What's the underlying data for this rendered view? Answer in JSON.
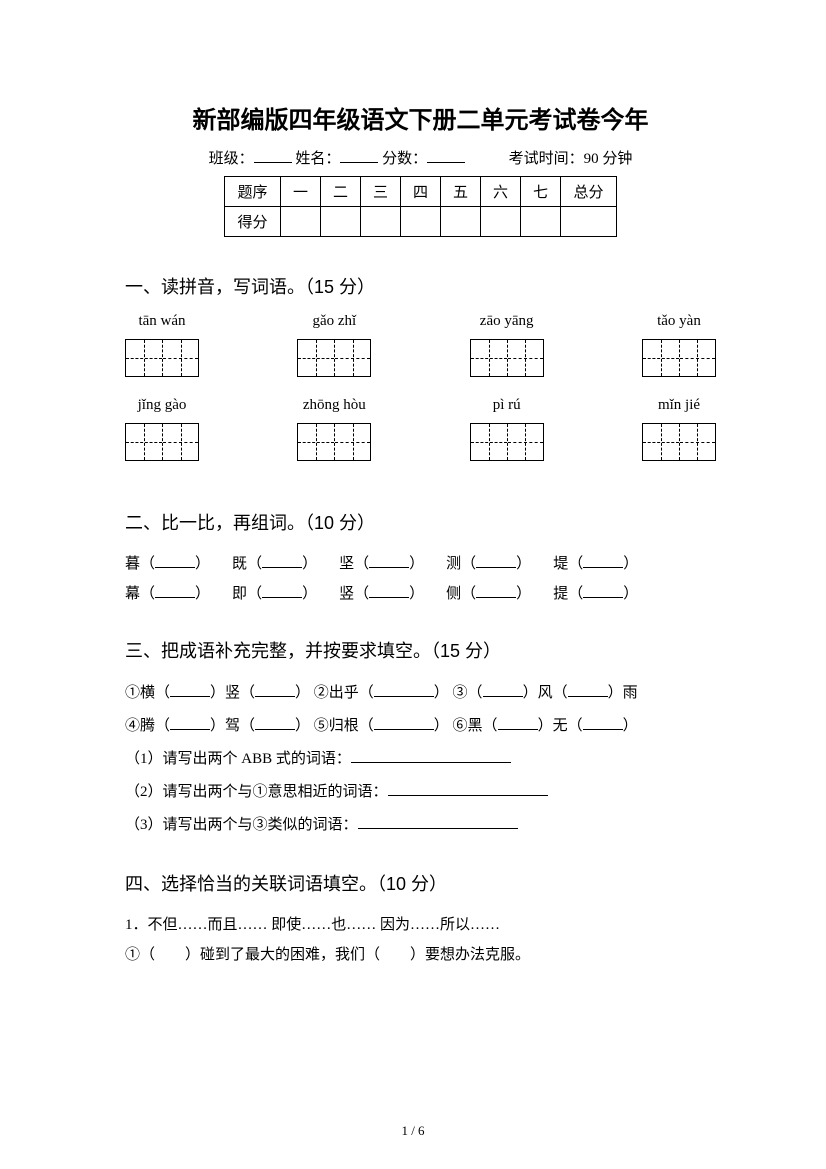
{
  "title": "新部编版四年级语文下册二单元考试卷今年",
  "meta": {
    "class_label": "班级：",
    "name_label": "姓名：",
    "score_label": "分数：",
    "time_label": "考试时间：90 分钟"
  },
  "score_table": {
    "row1": [
      "题序",
      "一",
      "二",
      "三",
      "四",
      "五",
      "六",
      "七",
      "总分"
    ],
    "row2_label": "得分"
  },
  "sections": {
    "s1": {
      "title": "一、读拼音，写词语。（15 分）",
      "row1": [
        "tān wán",
        "gǎo zhǐ",
        "zāo yāng",
        "tǎo yàn"
      ],
      "row2": [
        "jǐng gào",
        "zhōng hòu",
        "pì rú",
        "mǐn jié"
      ],
      "box_counts_row1": [
        2,
        2,
        2,
        2
      ],
      "box_counts_row2": [
        2,
        2,
        2,
        2
      ]
    },
    "s2": {
      "title": "二、比一比，再组词。（10 分）",
      "pairs_line1": [
        "暮",
        "既",
        "坚",
        "测",
        "堤"
      ],
      "pairs_line2": [
        "幕",
        "即",
        "竖",
        "侧",
        "提"
      ]
    },
    "s3": {
      "title": "三、把成语补充完整，并按要求填空。（15 分）",
      "l1_a": "①横（",
      "l1_b": "）竖（",
      "l1_c": "）  ②出乎（",
      "l1_d": "）  ③（",
      "l1_e": "）风（",
      "l1_f": "）雨",
      "l2_a": "④腾（",
      "l2_b": "）驾（",
      "l2_c": "）  ⑤归根（",
      "l2_d": "）  ⑥黑（",
      "l2_e": "）无（",
      "l2_f": "）",
      "sub1": "（1）请写出两个 ABB 式的词语：",
      "sub2": "（2）请写出两个与①意思相近的词语：",
      "sub3": "（3）请写出两个与③类似的词语："
    },
    "s4": {
      "title": "四、选择恰当的关联词语填空。（10 分）",
      "opts": "1．不但……而且……        即使……也……        因为……所以……",
      "q1_a": "①（",
      "q1_b": "）碰到了最大的困难，我们（",
      "q1_c": "）要想办法克服。"
    }
  },
  "page_num": "1 / 6"
}
